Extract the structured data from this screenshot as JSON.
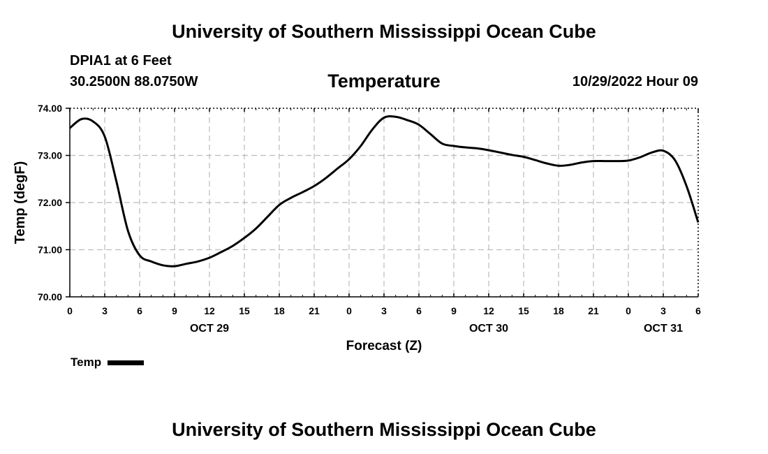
{
  "header": {
    "title": "University of Southern Mississippi Ocean Cube",
    "station": "DPIA1 at 6 Feet",
    "coords": "30.2500N  88.0750W",
    "datetime": "10/29/2022 Hour 09"
  },
  "footer": {
    "title": "University of Southern Mississippi Ocean Cube"
  },
  "legend": {
    "label": "Temp"
  },
  "chart_data": {
    "type": "line",
    "title": "Temperature",
    "xlabel": "Forecast (Z)",
    "ylabel": "Temp (degF)",
    "ylim": [
      70,
      74
    ],
    "yticks": [
      "70.00",
      "71.00",
      "72.00",
      "73.00",
      "74.00"
    ],
    "xlim": [
      0,
      54
    ],
    "xticks": [
      "0",
      "3",
      "6",
      "9",
      "12",
      "15",
      "18",
      "21",
      "0",
      "3",
      "6",
      "9",
      "12",
      "15",
      "18",
      "21",
      "0",
      "3",
      "6"
    ],
    "date_labels": [
      {
        "text": "OCT 29",
        "x_hour": 12
      },
      {
        "text": "OCT 30",
        "x_hour": 36
      },
      {
        "text": "OCT 31",
        "x_hour": 51
      }
    ],
    "grid": true,
    "grid_style": "dashed",
    "line_color": "#000000",
    "series": [
      {
        "name": "Temp",
        "x": [
          0,
          1,
          2,
          3,
          4,
          5,
          6,
          7,
          8,
          9,
          10,
          11,
          12,
          13,
          14,
          15,
          16,
          17,
          18,
          19,
          20,
          21,
          22,
          23,
          24,
          25,
          26,
          27,
          28,
          29,
          30,
          31,
          32,
          33,
          34,
          35,
          36,
          37,
          38,
          39,
          40,
          41,
          42,
          43,
          44,
          45,
          46,
          47,
          48,
          49,
          50,
          51,
          52,
          53,
          54
        ],
        "values": [
          73.58,
          73.77,
          73.72,
          73.4,
          72.45,
          71.4,
          70.88,
          70.75,
          70.67,
          70.65,
          70.7,
          70.75,
          70.83,
          70.95,
          71.08,
          71.25,
          71.45,
          71.7,
          71.95,
          72.1,
          72.22,
          72.35,
          72.52,
          72.72,
          72.92,
          73.2,
          73.55,
          73.8,
          73.82,
          73.75,
          73.65,
          73.45,
          73.25,
          73.2,
          73.17,
          73.15,
          73.11,
          73.06,
          73.01,
          72.97,
          72.9,
          72.83,
          72.78,
          72.8,
          72.85,
          72.88,
          72.88,
          72.88,
          72.89,
          72.96,
          73.06,
          73.1,
          72.9,
          72.35,
          71.58
        ]
      }
    ]
  }
}
